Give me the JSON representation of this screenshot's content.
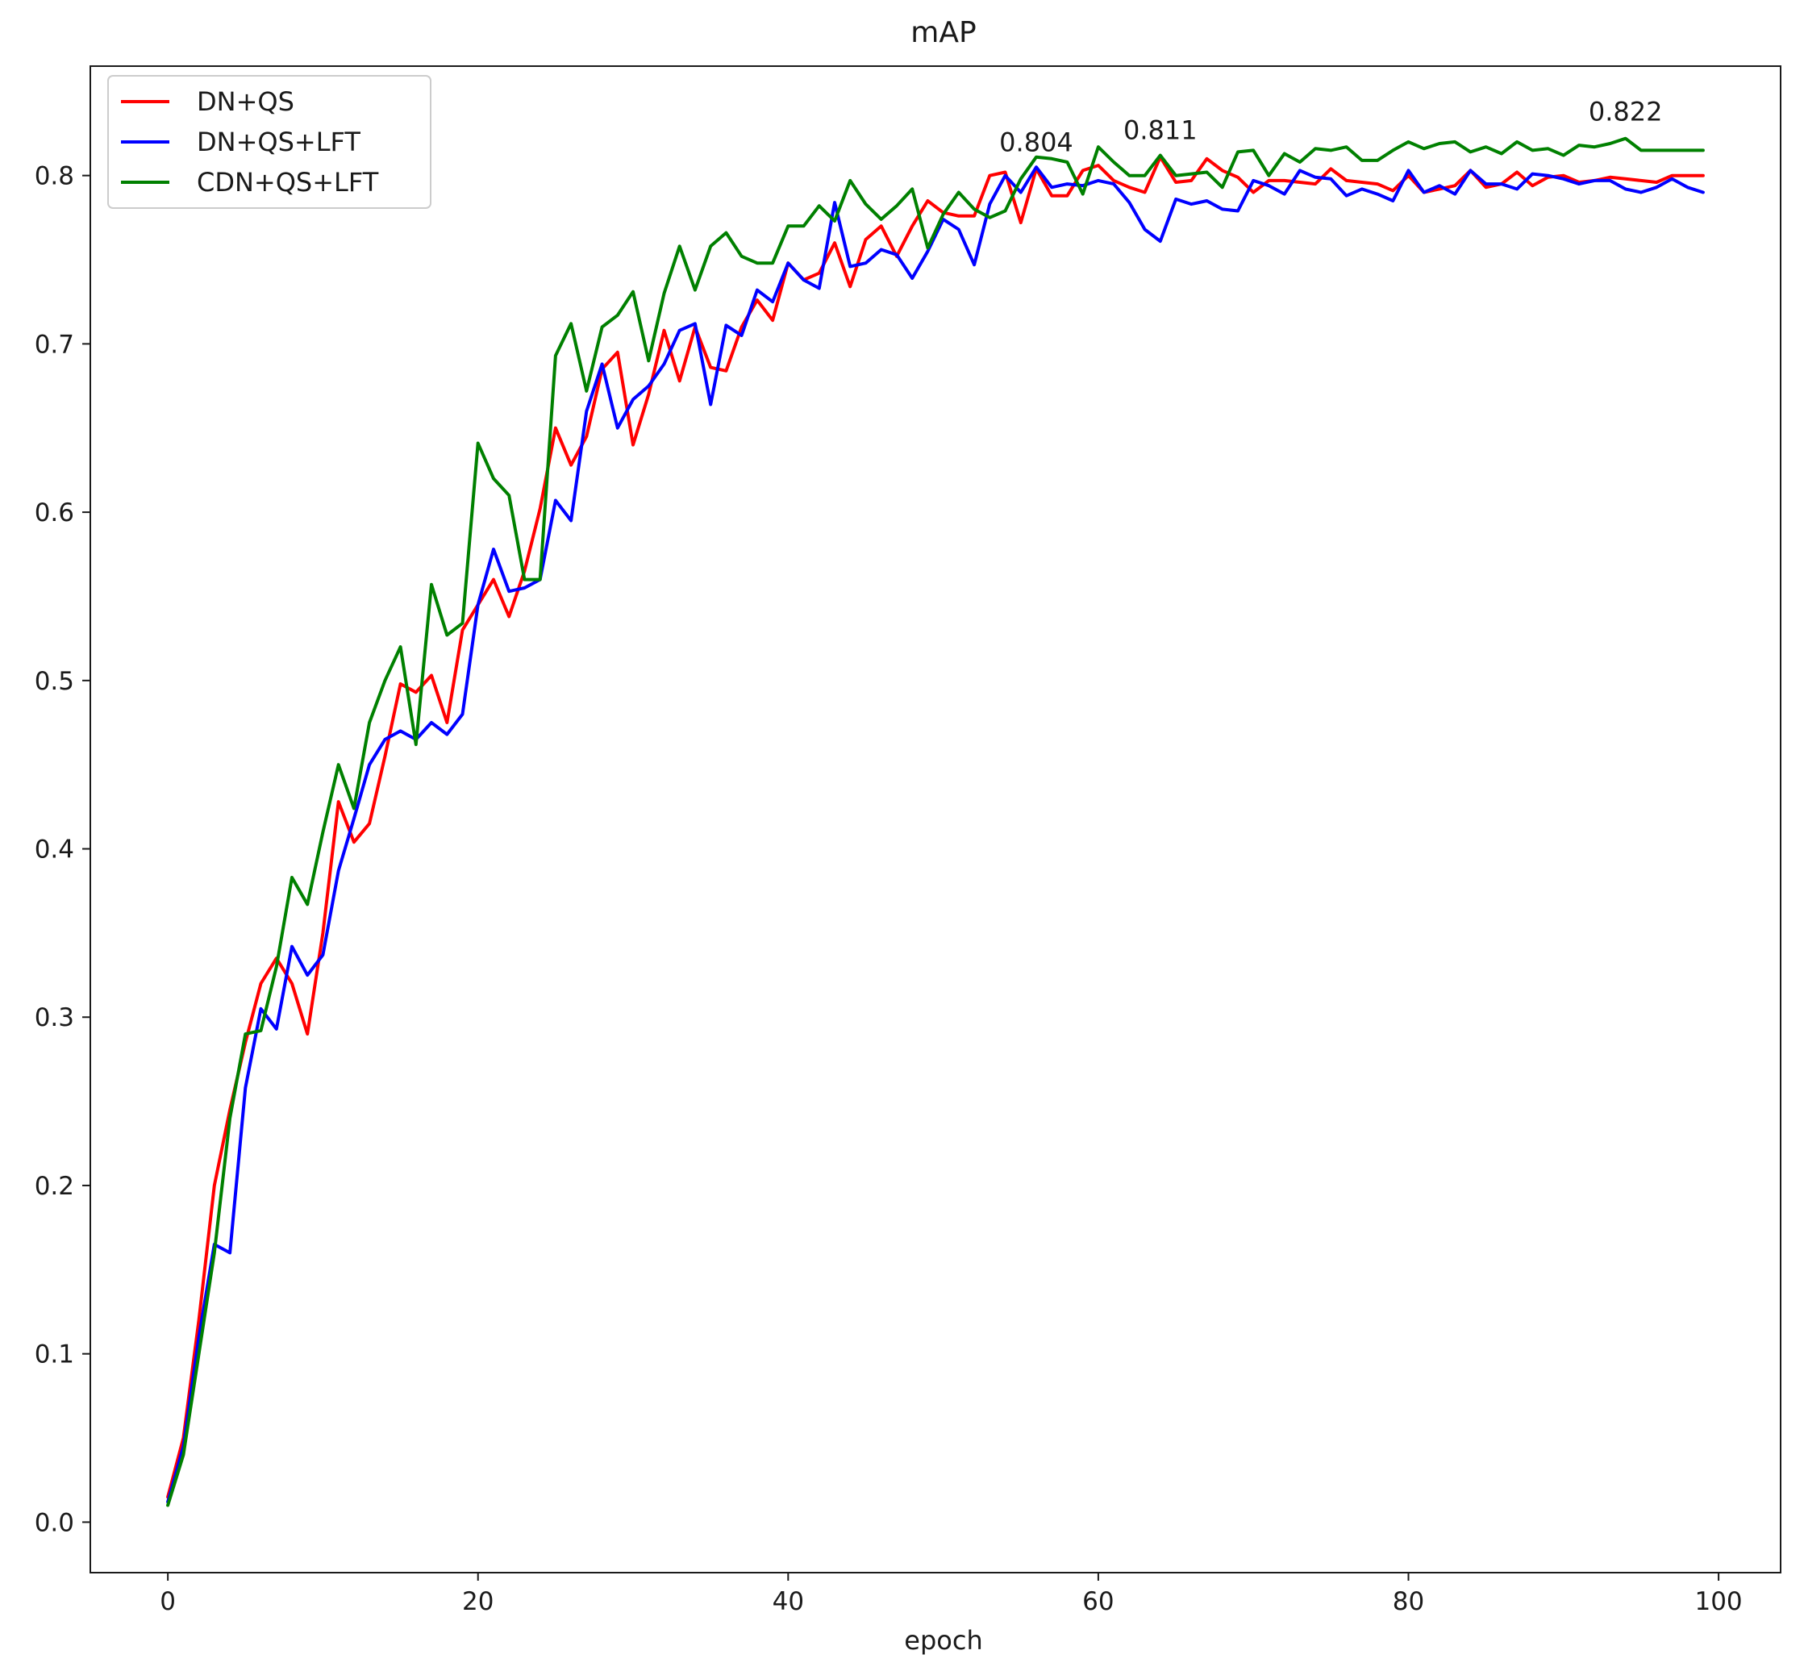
{
  "chart_data": {
    "type": "line",
    "title": "mAP",
    "xlabel": "epoch",
    "ylabel": "",
    "xlim": [
      -5,
      104
    ],
    "ylim": [
      -0.03,
      0.865
    ],
    "xticks": [
      0,
      20,
      40,
      60,
      80,
      100
    ],
    "xtick_labels": [
      "0",
      "20",
      "40",
      "60",
      "80",
      "100"
    ],
    "yticks": [
      0.0,
      0.1,
      0.2,
      0.3,
      0.4,
      0.5,
      0.6,
      0.7,
      0.8
    ],
    "ytick_labels": [
      "0.0",
      "0.1",
      "0.2",
      "0.3",
      "0.4",
      "0.5",
      "0.6",
      "0.7",
      "0.8"
    ],
    "grid": false,
    "legend_position": "top-left",
    "annotations": [
      {
        "text": "0.804",
        "x": 56,
        "y": 0.804
      },
      {
        "text": "0.811",
        "x": 64,
        "y": 0.811
      },
      {
        "text": "0.822",
        "x": 94,
        "y": 0.822
      }
    ],
    "series": [
      {
        "name": "DN+QS",
        "color": "#ff0000",
        "x": [
          0,
          1,
          2,
          3,
          4,
          5,
          6,
          7,
          8,
          9,
          10,
          11,
          12,
          13,
          14,
          15,
          16,
          17,
          18,
          19,
          20,
          21,
          22,
          23,
          24,
          25,
          26,
          27,
          28,
          29,
          30,
          31,
          32,
          33,
          34,
          35,
          36,
          37,
          38,
          39,
          40,
          41,
          42,
          43,
          44,
          45,
          46,
          47,
          48,
          49,
          50,
          51,
          52,
          53,
          54,
          55,
          56,
          57,
          58,
          59,
          60,
          61,
          62,
          63,
          64,
          65,
          66,
          67,
          68,
          69,
          70,
          71,
          72,
          73,
          74,
          75,
          76,
          77,
          78,
          79,
          80,
          81,
          82,
          83,
          84,
          85,
          86,
          87,
          88,
          89,
          90,
          91,
          92,
          93,
          94,
          95,
          96,
          97,
          98,
          99
        ],
        "values": [
          0.015,
          0.05,
          0.12,
          0.2,
          0.245,
          0.285,
          0.32,
          0.335,
          0.32,
          0.29,
          0.35,
          0.428,
          0.404,
          0.415,
          0.455,
          0.498,
          0.493,
          0.503,
          0.475,
          0.53,
          0.545,
          0.56,
          0.538,
          0.565,
          0.602,
          0.65,
          0.628,
          0.645,
          0.685,
          0.695,
          0.64,
          0.67,
          0.708,
          0.678,
          0.71,
          0.686,
          0.684,
          0.71,
          0.726,
          0.714,
          0.748,
          0.738,
          0.742,
          0.76,
          0.734,
          0.762,
          0.77,
          0.752,
          0.77,
          0.785,
          0.778,
          0.776,
          0.776,
          0.8,
          0.802,
          0.772,
          0.804,
          0.788,
          0.788,
          0.803,
          0.806,
          0.797,
          0.793,
          0.79,
          0.811,
          0.796,
          0.797,
          0.81,
          0.803,
          0.799,
          0.79,
          0.797,
          0.797,
          0.796,
          0.795,
          0.804,
          0.797,
          0.796,
          0.795,
          0.791,
          0.8,
          0.79,
          0.792,
          0.794,
          0.803,
          0.793,
          0.795,
          0.802,
          0.794,
          0.799,
          0.8,
          0.796,
          0.797,
          0.799,
          0.798,
          0.797,
          0.796,
          0.8,
          0.8,
          0.8
        ]
      },
      {
        "name": "DN+QS+LFT",
        "color": "#0000ff",
        "x": [
          0,
          1,
          2,
          3,
          4,
          5,
          6,
          7,
          8,
          9,
          10,
          11,
          12,
          13,
          14,
          15,
          16,
          17,
          18,
          19,
          20,
          21,
          22,
          23,
          24,
          25,
          26,
          27,
          28,
          29,
          30,
          31,
          32,
          33,
          34,
          35,
          36,
          37,
          38,
          39,
          40,
          41,
          42,
          43,
          44,
          45,
          46,
          47,
          48,
          49,
          50,
          51,
          52,
          53,
          54,
          55,
          56,
          57,
          58,
          59,
          60,
          61,
          62,
          63,
          64,
          65,
          66,
          67,
          68,
          69,
          70,
          71,
          72,
          73,
          74,
          75,
          76,
          77,
          78,
          79,
          80,
          81,
          82,
          83,
          84,
          85,
          86,
          87,
          88,
          89,
          90,
          91,
          92,
          93,
          94,
          95,
          96,
          97,
          98,
          99
        ],
        "values": [
          0.012,
          0.045,
          0.11,
          0.165,
          0.16,
          0.258,
          0.305,
          0.293,
          0.342,
          0.325,
          0.337,
          0.387,
          0.418,
          0.45,
          0.465,
          0.47,
          0.465,
          0.475,
          0.468,
          0.48,
          0.545,
          0.578,
          0.553,
          0.555,
          0.56,
          0.607,
          0.595,
          0.66,
          0.688,
          0.65,
          0.667,
          0.675,
          0.688,
          0.708,
          0.712,
          0.664,
          0.711,
          0.705,
          0.732,
          0.725,
          0.748,
          0.738,
          0.733,
          0.784,
          0.746,
          0.748,
          0.756,
          0.753,
          0.739,
          0.755,
          0.774,
          0.768,
          0.747,
          0.783,
          0.8,
          0.79,
          0.805,
          0.793,
          0.795,
          0.794,
          0.797,
          0.795,
          0.784,
          0.768,
          0.761,
          0.786,
          0.783,
          0.785,
          0.78,
          0.779,
          0.797,
          0.794,
          0.789,
          0.803,
          0.799,
          0.798,
          0.788,
          0.792,
          0.789,
          0.785,
          0.803,
          0.79,
          0.794,
          0.789,
          0.803,
          0.795,
          0.795,
          0.792,
          0.801,
          0.8,
          0.798,
          0.795,
          0.797,
          0.797,
          0.792,
          0.79,
          0.793,
          0.798,
          0.793,
          0.79
        ]
      },
      {
        "name": "CDN+QS+LFT",
        "color": "#008000",
        "x": [
          0,
          1,
          2,
          3,
          4,
          5,
          6,
          7,
          8,
          9,
          10,
          11,
          12,
          13,
          14,
          15,
          16,
          17,
          18,
          19,
          20,
          21,
          22,
          23,
          24,
          25,
          26,
          27,
          28,
          29,
          30,
          31,
          32,
          33,
          34,
          35,
          36,
          37,
          38,
          39,
          40,
          41,
          42,
          43,
          44,
          45,
          46,
          47,
          48,
          49,
          50,
          51,
          52,
          53,
          54,
          55,
          56,
          57,
          58,
          59,
          60,
          61,
          62,
          63,
          64,
          65,
          66,
          67,
          68,
          69,
          70,
          71,
          72,
          73,
          74,
          75,
          76,
          77,
          78,
          79,
          80,
          81,
          82,
          83,
          84,
          85,
          86,
          87,
          88,
          89,
          90,
          91,
          92,
          93,
          94,
          95,
          96,
          97,
          98,
          99
        ],
        "values": [
          0.01,
          0.04,
          0.1,
          0.16,
          0.24,
          0.29,
          0.292,
          0.33,
          0.383,
          0.367,
          0.41,
          0.45,
          0.424,
          0.475,
          0.5,
          0.52,
          0.462,
          0.557,
          0.527,
          0.534,
          0.641,
          0.62,
          0.61,
          0.56,
          0.56,
          0.693,
          0.712,
          0.672,
          0.71,
          0.717,
          0.731,
          0.69,
          0.73,
          0.758,
          0.732,
          0.758,
          0.766,
          0.752,
          0.748,
          0.748,
          0.77,
          0.77,
          0.782,
          0.773,
          0.797,
          0.783,
          0.774,
          0.782,
          0.792,
          0.757,
          0.777,
          0.79,
          0.78,
          0.775,
          0.779,
          0.798,
          0.811,
          0.81,
          0.808,
          0.789,
          0.817,
          0.808,
          0.8,
          0.8,
          0.812,
          0.8,
          0.801,
          0.802,
          0.793,
          0.814,
          0.815,
          0.8,
          0.813,
          0.808,
          0.816,
          0.815,
          0.817,
          0.809,
          0.809,
          0.815,
          0.82,
          0.816,
          0.819,
          0.82,
          0.814,
          0.817,
          0.813,
          0.82,
          0.815,
          0.816,
          0.812,
          0.818,
          0.817,
          0.819,
          0.822,
          0.815,
          0.815,
          0.815,
          0.815,
          0.815
        ]
      }
    ]
  }
}
